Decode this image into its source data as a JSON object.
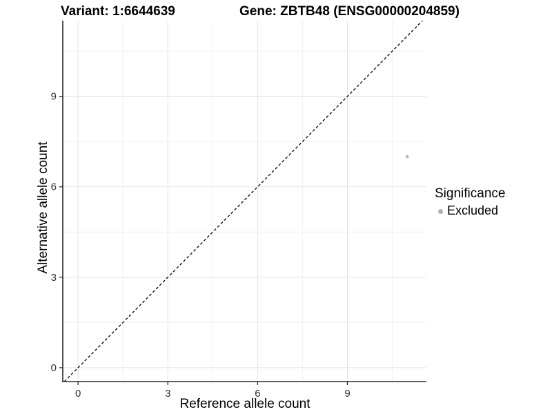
{
  "page": {
    "background": "#ffffff"
  },
  "chart_data": {
    "type": "scatter",
    "titles": {
      "left": "Variant: 1:6644639",
      "right": "Gene: ZBTB48 (ENSG00000204859)"
    },
    "xlabel": "Reference allele count",
    "ylabel": "Alternative allele count",
    "xlim": [
      -0.51,
      11.64
    ],
    "ylim": [
      -0.46,
      11.51
    ],
    "xticks": [
      0,
      3,
      6,
      9
    ],
    "yticks": [
      0,
      3,
      6,
      9
    ],
    "minor_xticks": [
      1.5,
      4.5,
      7.5,
      10.5
    ],
    "minor_yticks": [
      1.5,
      4.5,
      7.5,
      10.5
    ],
    "grid": "major+minor",
    "identity_line": {
      "slope": 1,
      "intercept": 0,
      "style": "dashed",
      "color": "#000000"
    },
    "series": [
      {
        "name": "Excluded",
        "color": "#b9b9b9",
        "points": [
          [
            11,
            7
          ]
        ]
      }
    ],
    "legend": {
      "title": "Significance",
      "position": "right",
      "items": [
        {
          "label": "Excluded",
          "color": "#b0b0b0"
        }
      ]
    },
    "colors": {
      "grid_major": "#e3e3e3",
      "grid_minor": "#f0f0f0",
      "axis": "#2b2b2b",
      "tick_label": "#303030",
      "text": "#000000"
    }
  }
}
